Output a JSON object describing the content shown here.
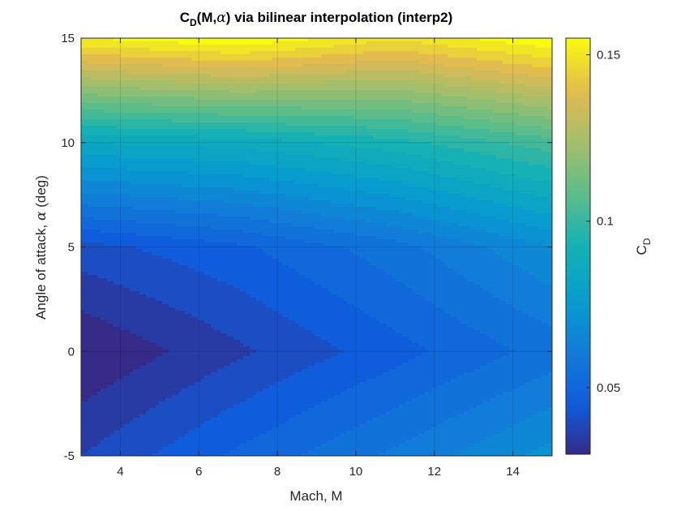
{
  "chart_data": {
    "type": "heatmap",
    "title": {
      "prefix": "C",
      "prefix_sub": "D",
      "args_open": "(M,",
      "args_symbol": "α",
      "args_close": ")",
      "rest": " via bilinear interpolation (interp2)"
    },
    "xlabel": "Mach, M",
    "ylabel": {
      "text": "Angle of attack, ",
      "symbol": "α",
      "unit": " (deg)"
    },
    "colorbar_label": {
      "main": "C",
      "sub": "D"
    },
    "xlim": [
      3,
      15
    ],
    "ylim": [
      -5,
      15
    ],
    "clim": [
      0.03,
      0.155
    ],
    "x_ticks": [
      4,
      6,
      8,
      10,
      12,
      14
    ],
    "y_ticks": [
      -5,
      0,
      5,
      10,
      15
    ],
    "colorbar_ticks": [
      0.05,
      0.1,
      0.15
    ],
    "grid": true,
    "colormap": "parula",
    "filled_contour_levels": 25,
    "mach": [
      3,
      7,
      11,
      15
    ],
    "alpha_deg": [
      -5,
      0,
      5,
      10,
      15
    ],
    "CD": [
      [
        0.04,
        0.051,
        0.061,
        0.072
      ],
      [
        0.03,
        0.039,
        0.048,
        0.057
      ],
      [
        0.043,
        0.049,
        0.058,
        0.07
      ],
      [
        0.085,
        0.087,
        0.093,
        0.103
      ],
      [
        0.15,
        0.155,
        0.146,
        0.155
      ]
    ]
  }
}
